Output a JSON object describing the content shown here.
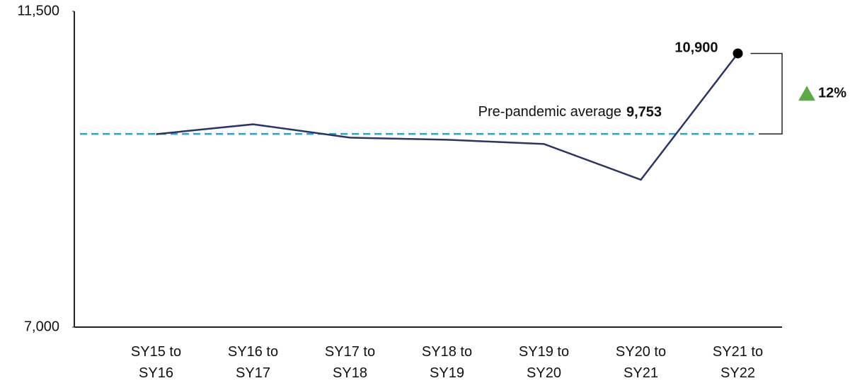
{
  "chart_data": {
    "type": "line",
    "categories": [
      "SY15 to SY16",
      "SY16 to SY17",
      "SY17 to SY18",
      "SY18 to SY19",
      "SY19 to SY20",
      "SY20 to SY21",
      "SY21 to SY22"
    ],
    "series": [
      {
        "color": "#2b3467",
        "values": [
          9750,
          9890,
          9700,
          9670,
          9610,
          9100,
          10900
        ],
        "value_labels": [
          null,
          null,
          null,
          null,
          null,
          null,
          "10,900"
        ]
      }
    ],
    "ylim": [
      7000,
      11500
    ],
    "yticks": [
      {
        "value": 7000,
        "label": "7,000"
      },
      {
        "value": 11500,
        "label": "11,500"
      }
    ],
    "reference": {
      "label": "Pre-pandemic average",
      "value": 9753,
      "value_label": "9,753",
      "color": "#2aa3c4"
    },
    "change": {
      "label": "12%",
      "color": "#5aab46"
    }
  }
}
